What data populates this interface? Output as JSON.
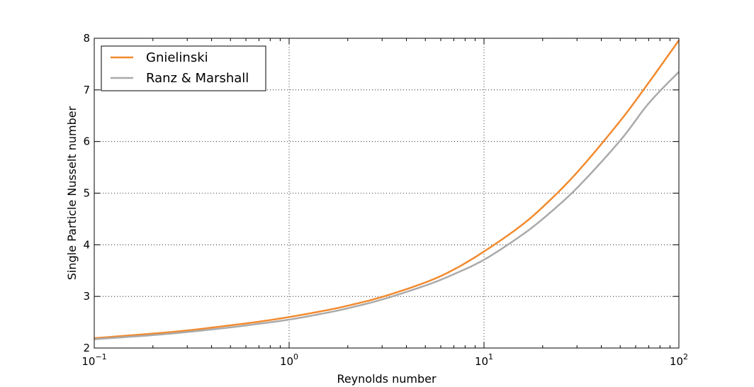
{
  "chart_data": {
    "type": "line",
    "xlabel": "Reynolds number",
    "ylabel": "Single Particle Nusselt number",
    "xscale": "log",
    "xlim": [
      0.1,
      100
    ],
    "ylim": [
      2,
      8
    ],
    "grid": true,
    "legend_position": "top-left",
    "x_ticks": [
      {
        "value": 0.1,
        "base": "10",
        "exp": "−1"
      },
      {
        "value": 1,
        "base": "10",
        "exp": "0"
      },
      {
        "value": 10,
        "base": "10",
        "exp": "1"
      },
      {
        "value": 100,
        "base": "10",
        "exp": "2"
      }
    ],
    "y_ticks": [
      {
        "value": 2,
        "label": "2"
      },
      {
        "value": 3,
        "label": "3"
      },
      {
        "value": 4,
        "label": "4"
      },
      {
        "value": 5,
        "label": "5"
      },
      {
        "value": 6,
        "label": "6"
      },
      {
        "value": 7,
        "label": "7"
      },
      {
        "value": 8,
        "label": "8"
      }
    ],
    "series": [
      {
        "name": "Gnielinski",
        "color": "#F28A2E",
        "x": [
          0.1,
          0.2,
          0.3,
          0.5,
          0.7,
          1,
          1.5,
          2,
          3,
          5,
          7,
          10,
          15,
          20,
          30,
          50,
          70,
          100
        ],
        "y": [
          2.19,
          2.28,
          2.34,
          2.44,
          2.51,
          2.6,
          2.72,
          2.82,
          2.99,
          3.27,
          3.52,
          3.87,
          4.33,
          4.73,
          5.4,
          6.4,
          7.14,
          7.96
        ]
      },
      {
        "name": "Ranz & Marshall",
        "color": "#AAAAAA",
        "x": [
          0.1,
          0.2,
          0.3,
          0.5,
          0.7,
          1,
          1.5,
          2,
          3,
          5,
          7,
          10,
          15,
          20,
          30,
          50,
          70,
          100
        ],
        "y": [
          2.17,
          2.25,
          2.31,
          2.4,
          2.47,
          2.55,
          2.67,
          2.77,
          2.94,
          3.21,
          3.43,
          3.71,
          4.14,
          4.5,
          5.1,
          6.02,
          6.74,
          7.35
        ]
      }
    ]
  }
}
